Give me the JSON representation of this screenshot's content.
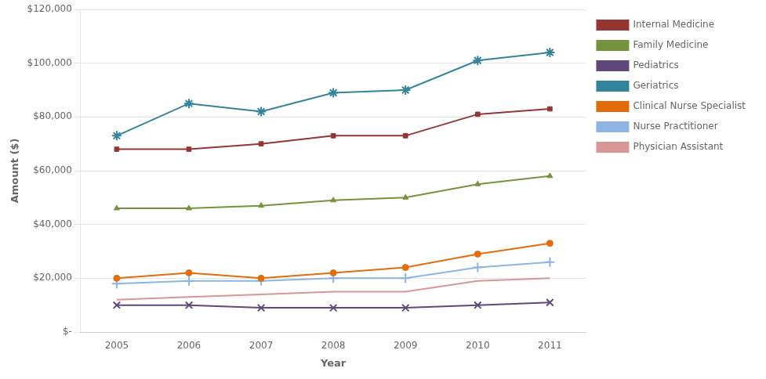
{
  "chart_data": {
    "type": "line",
    "xlabel": "Year",
    "ylabel": "Amount ($)",
    "x": [
      2005,
      2006,
      2007,
      2008,
      2009,
      2010,
      2011
    ],
    "xlim": [
      2004.5,
      2011.5
    ],
    "xticks": [
      2005,
      2006,
      2007,
      2008,
      2009,
      2010,
      2011
    ],
    "ylim": [
      0,
      120000
    ],
    "yticks": [
      {
        "value": 0,
        "label": "$-"
      },
      {
        "value": 20000,
        "label": "$20,000"
      },
      {
        "value": 40000,
        "label": "$40,000"
      },
      {
        "value": 60000,
        "label": "$60,000"
      },
      {
        "value": 80000,
        "label": "$80,000"
      },
      {
        "value": 100000,
        "label": "$100,000"
      },
      {
        "value": 120000,
        "label": "$120,000"
      }
    ],
    "grid": "y",
    "legend": "right",
    "series": [
      {
        "name": "Internal Medicine",
        "color": "#943634",
        "marker": "square",
        "values": [
          68000,
          68000,
          70000,
          73000,
          73000,
          81000,
          83000
        ]
      },
      {
        "name": "Family Medicine",
        "color": "#76923C",
        "marker": "triangle",
        "values": [
          46000,
          46000,
          47000,
          49000,
          50000,
          55000,
          58000
        ]
      },
      {
        "name": "Pediatrics",
        "color": "#60497A",
        "marker": "x",
        "values": [
          10000,
          10000,
          9000,
          9000,
          9000,
          10000,
          11000
        ]
      },
      {
        "name": "Geriatrics",
        "color": "#31849B",
        "marker": "star",
        "values": [
          73000,
          85000,
          82000,
          89000,
          90000,
          101000,
          104000
        ]
      },
      {
        "name": "Clinical Nurse Specialist",
        "color": "#E46C0A",
        "marker": "circle",
        "values": [
          20000,
          22000,
          20000,
          22000,
          24000,
          29000,
          33000
        ]
      },
      {
        "name": "Nurse Practitioner",
        "color": "#8DB4E2",
        "marker": "plus",
        "values": [
          18000,
          19000,
          19000,
          20000,
          20000,
          24000,
          26000
        ]
      },
      {
        "name": "Physician Assistant",
        "color": "#DA9694",
        "marker": "none",
        "values": [
          12000,
          13000,
          14000,
          15000,
          15000,
          19000,
          20000
        ]
      }
    ]
  }
}
